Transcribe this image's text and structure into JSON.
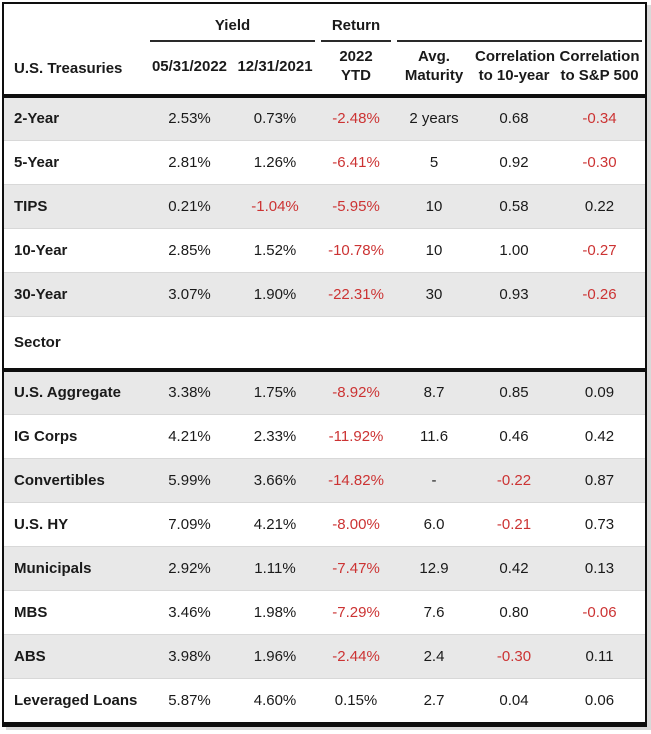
{
  "colors": {
    "negative_text": "#cc3333",
    "default_text": "#1a1a1a",
    "alt_row_bg": "#e8e8e8",
    "table_border": "#0e0e0e"
  },
  "chart_data": {
    "type": "table",
    "corner_header": "U.S. Treasuries",
    "group_headers": {
      "yield": "Yield",
      "return": "Return"
    },
    "columns": [
      {
        "id": "yield-05-31-2022",
        "lines": [
          "05/31/2022"
        ]
      },
      {
        "id": "yield-12-31-2021",
        "lines": [
          "12/31/2021"
        ]
      },
      {
        "id": "return-2022-ytd",
        "lines": [
          "2022",
          "YTD"
        ]
      },
      {
        "id": "avg-maturity",
        "lines": [
          "Avg.",
          "Maturity"
        ]
      },
      {
        "id": "correlation-10-year",
        "lines": [
          "Correlation",
          "to 10-year"
        ]
      },
      {
        "id": "correlation-sp500",
        "lines": [
          "Correlation",
          "to S&P 500"
        ]
      }
    ],
    "sections": [
      {
        "label": null,
        "rows": [
          {
            "label": "2-Year",
            "values": [
              "2.53%",
              "0.73%",
              "-2.48%",
              "2 years",
              "0.68",
              "-0.34"
            ]
          },
          {
            "label": "5-Year",
            "values": [
              "2.81%",
              "1.26%",
              "-6.41%",
              "5",
              "0.92",
              "-0.30"
            ]
          },
          {
            "label": "TIPS",
            "values": [
              "0.21%",
              "-1.04%",
              "-5.95%",
              "10",
              "0.58",
              "0.22"
            ]
          },
          {
            "label": "10-Year",
            "values": [
              "2.85%",
              "1.52%",
              "-10.78%",
              "10",
              "1.00",
              "-0.27"
            ]
          },
          {
            "label": "30-Year",
            "values": [
              "3.07%",
              "1.90%",
              "-22.31%",
              "30",
              "0.93",
              "-0.26"
            ]
          }
        ]
      },
      {
        "label": "Sector",
        "rows": [
          {
            "label": "U.S. Aggregate",
            "values": [
              "3.38%",
              "1.75%",
              "-8.92%",
              "8.7",
              "0.85",
              "0.09"
            ]
          },
          {
            "label": "IG Corps",
            "values": [
              "4.21%",
              "2.33%",
              "-11.92%",
              "11.6",
              "0.46",
              "0.42"
            ]
          },
          {
            "label": "Convertibles",
            "values": [
              "5.99%",
              "3.66%",
              "-14.82%",
              "-",
              "-0.22",
              "0.87"
            ]
          },
          {
            "label": "U.S. HY",
            "values": [
              "7.09%",
              "4.21%",
              "-8.00%",
              "6.0",
              "-0.21",
              "0.73"
            ]
          },
          {
            "label": "Municipals",
            "values": [
              "2.92%",
              "1.11%",
              "-7.47%",
              "12.9",
              "0.42",
              "0.13"
            ]
          },
          {
            "label": "MBS",
            "values": [
              "3.46%",
              "1.98%",
              "-7.29%",
              "7.6",
              "0.80",
              "-0.06"
            ]
          },
          {
            "label": "ABS",
            "values": [
              "3.98%",
              "1.96%",
              "-2.44%",
              "2.4",
              "-0.30",
              "0.11"
            ]
          },
          {
            "label": "Leveraged Loans",
            "values": [
              "5.87%",
              "4.60%",
              "0.15%",
              "2.7",
              "0.04",
              "0.06"
            ]
          }
        ]
      }
    ]
  }
}
